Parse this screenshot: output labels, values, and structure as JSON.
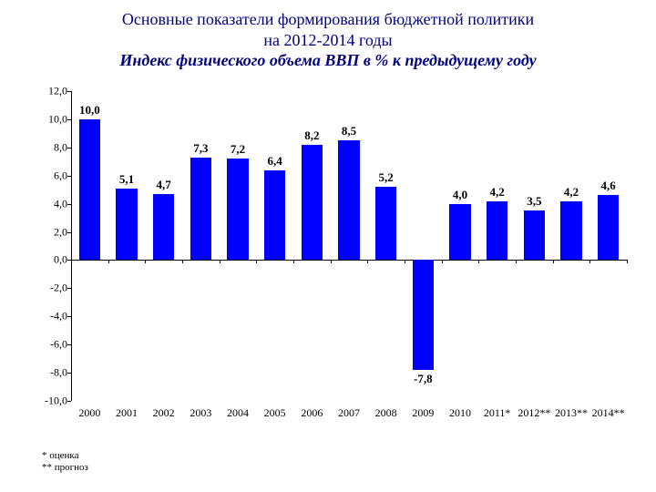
{
  "title": {
    "line1": "Основные показатели формирования бюджетной политики",
    "line2": "на 2012-2014 годы",
    "subtitle": "Индекс физического объема ВВП в % к предыдущему году"
  },
  "chart": {
    "type": "bar",
    "background_color": "#ffffff",
    "bar_color": "#0000ff",
    "axis_color": "#000000",
    "label_color": "#000000",
    "label_fontsize": 13,
    "xlabel_fontsize": 12,
    "ylabel_fontsize": 12,
    "ylim_min": -10.0,
    "ylim_max": 12.0,
    "ytick_step": 2.0,
    "yticks": [
      "12,0",
      "10,0",
      "8,0",
      "6,0",
      "4,0",
      "2,0",
      "0,0",
      "-2,0",
      "-4,0",
      "-6,0",
      "-8,0",
      "-10,0"
    ],
    "ytick_values": [
      12.0,
      10.0,
      8.0,
      6.0,
      4.0,
      2.0,
      0.0,
      -2.0,
      -4.0,
      -6.0,
      -8.0,
      -10.0
    ],
    "bar_width_ratio": 0.58,
    "categories": [
      "2000",
      "2001",
      "2002",
      "2003",
      "2004",
      "2005",
      "2006",
      "2007",
      "2008",
      "2009",
      "2010",
      "2011*",
      "2012**",
      "2013**",
      "2014**"
    ],
    "values": [
      10.0,
      5.1,
      4.7,
      7.3,
      7.2,
      6.4,
      8.2,
      8.5,
      5.2,
      -7.8,
      4.0,
      4.2,
      3.5,
      4.2,
      4.6
    ],
    "value_labels": [
      "10,0",
      "5,1",
      "4,7",
      "7,3",
      "7,2",
      "6,4",
      "8,2",
      "8,5",
      "5,2",
      "-7,8",
      "4,0",
      "4,2",
      "3,5",
      "4,2",
      "4,6"
    ]
  },
  "footnotes": {
    "f1": "* оценка",
    "f2": "** прогноз"
  }
}
